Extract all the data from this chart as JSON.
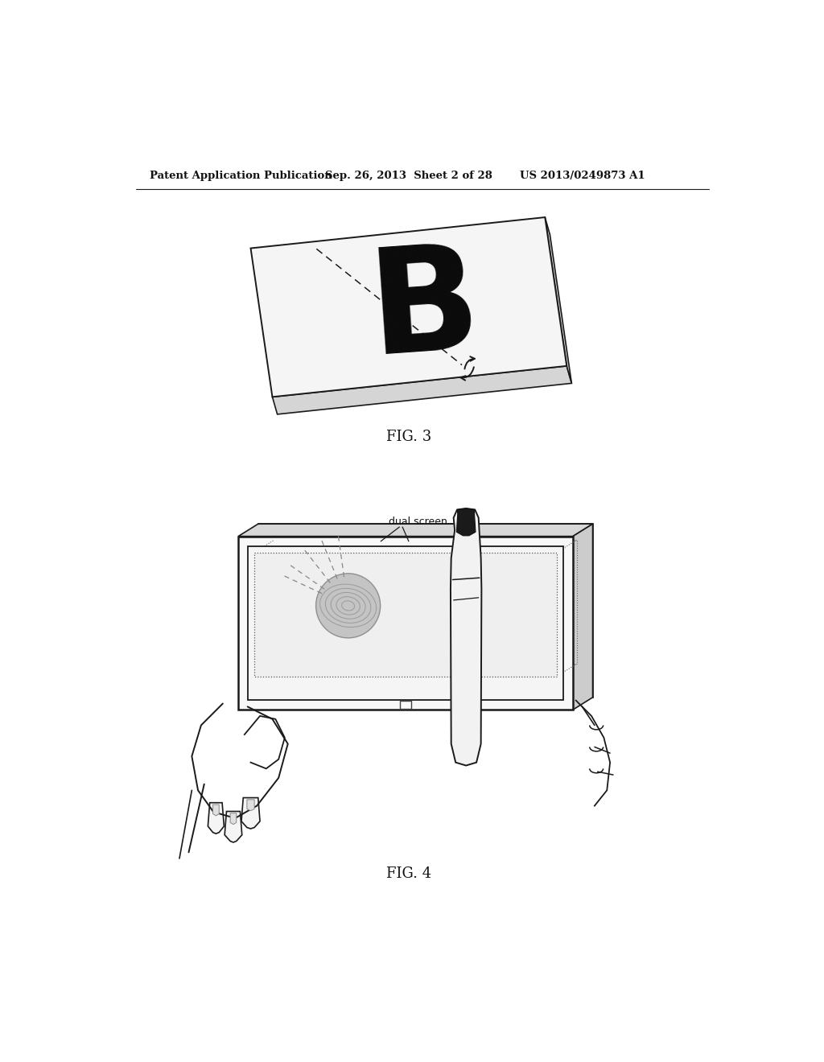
{
  "bg_color": "#ffffff",
  "header_text": "Patent Application Publication",
  "header_date": "Sep. 26, 2013  Sheet 2 of 28",
  "header_patent": "US 2013/0249873 A1",
  "fig3_label": "FIG. 3",
  "fig4_label": "FIG. 4",
  "fig3_letter": "B",
  "fig4_annotation": "dual screen",
  "line_color": "#1a1a1a",
  "fill_light": "#f8f8f8",
  "fill_medium": "#e8e8e8",
  "fill_dark": "#d0d0d0",
  "gray_circle": "#bbbbbb"
}
